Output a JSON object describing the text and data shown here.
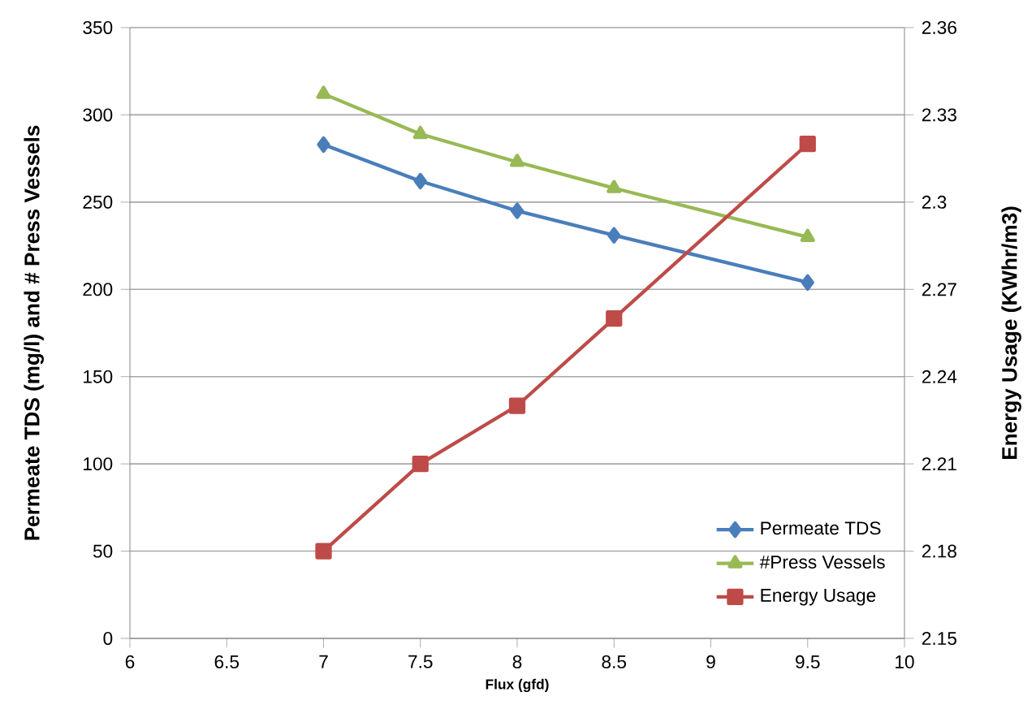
{
  "chart_data": {
    "type": "line",
    "xlabel": "Flux (gfd)",
    "ylabel": "Permeate TDS (mg/l) and # Press Vessels",
    "y2label": "Energy Usage (KWhr/m3)",
    "x": [
      7,
      7.5,
      8,
      8.5,
      9.5
    ],
    "series": [
      {
        "name": "Permeate TDS",
        "color": "#4a7ebb",
        "marker": "diamond",
        "values": [
          283,
          262,
          245,
          231,
          204
        ]
      },
      {
        "name": "#Press Vessels",
        "color": "#98b954",
        "marker": "triangle",
        "values": [
          312,
          289,
          273,
          258,
          230
        ]
      },
      {
        "name": "Energy Usage",
        "color": "#be4b48",
        "marker": "square",
        "axis": "y2",
        "values": [
          2.18,
          2.21,
          2.23,
          2.26,
          2.32
        ]
      }
    ],
    "xlim": [
      6,
      10
    ],
    "xticks": [
      6,
      6.5,
      7,
      7.5,
      8,
      8.5,
      9,
      9.5,
      10
    ],
    "ylim": [
      0,
      350
    ],
    "yticks": [
      0,
      50,
      100,
      150,
      200,
      250,
      300,
      350
    ],
    "y2lim": [
      2.15,
      2.36
    ],
    "y2ticks": [
      2.15,
      2.18,
      2.21,
      2.24,
      2.27,
      2.3,
      2.33,
      2.36
    ],
    "grid": "y",
    "legend": "bottom right",
    "line_style": "solid"
  }
}
